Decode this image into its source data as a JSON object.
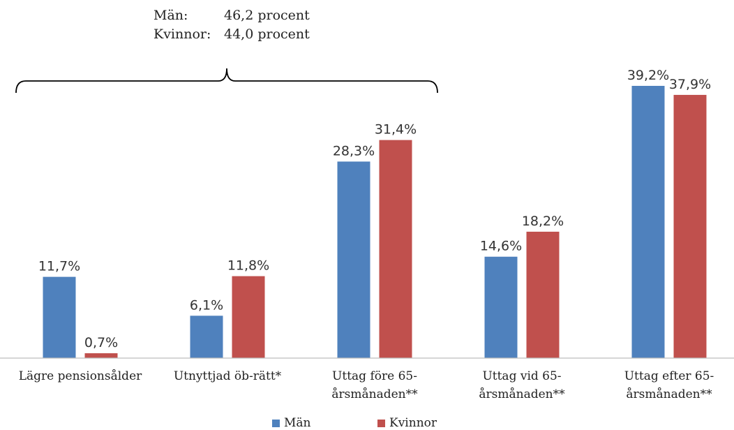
{
  "chart_data": {
    "type": "bar",
    "categories": [
      [
        "Lägre pensionsålder"
      ],
      [
        "Utnyttjad öb-rätt*"
      ],
      [
        "Uttag före 65-",
        "årsmånaden**"
      ],
      [
        "Uttag vid 65-",
        "årsmånaden**"
      ],
      [
        "Uttag efter 65-",
        "årsmånaden**"
      ]
    ],
    "series": [
      {
        "name": "Män",
        "color": "#4f81bd",
        "values": [
          11.7,
          6.1,
          28.3,
          14.6,
          39.2
        ],
        "labels": [
          "11,7%",
          "6,1%",
          "28,3%",
          "14,6%",
          "39,2%"
        ]
      },
      {
        "name": "Kvinnor",
        "color": "#c0504d",
        "values": [
          0.7,
          11.8,
          31.4,
          18.2,
          37.9
        ],
        "labels": [
          "0,7%",
          "11,8%",
          "31,4%",
          "18,2%",
          "37,9%"
        ]
      }
    ],
    "ylim": [
      0,
      45
    ],
    "grid": false,
    "legend_position": "bottom",
    "annotation": {
      "rows": [
        {
          "label": "Män:",
          "value": "46,2 procent"
        },
        {
          "label": "Kvinnor:",
          "value": "44,0 procent"
        }
      ],
      "bracket_spans": "first-three-categories"
    }
  }
}
